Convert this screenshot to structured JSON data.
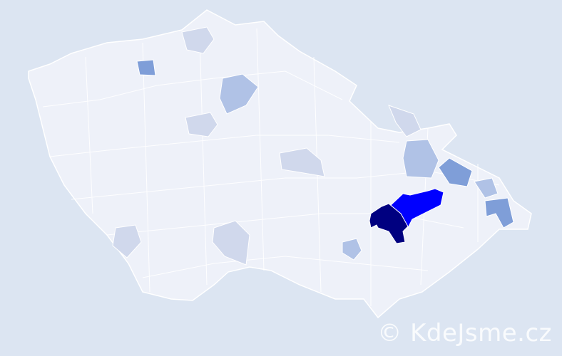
{
  "map": {
    "background_color": "#dce5f2",
    "base_region_color": "#eef1f9",
    "border_color": "#ffffff",
    "levels": [
      {
        "level": "very-light",
        "color": "#d0d8ec"
      },
      {
        "level": "light",
        "color": "#b0c2e6"
      },
      {
        "level": "medium",
        "color": "#7f9ed8"
      },
      {
        "level": "high",
        "color": "#0000ff"
      },
      {
        "level": "highest",
        "color": "#000080"
      }
    ]
  },
  "watermark": "© KdeJsme.cz"
}
